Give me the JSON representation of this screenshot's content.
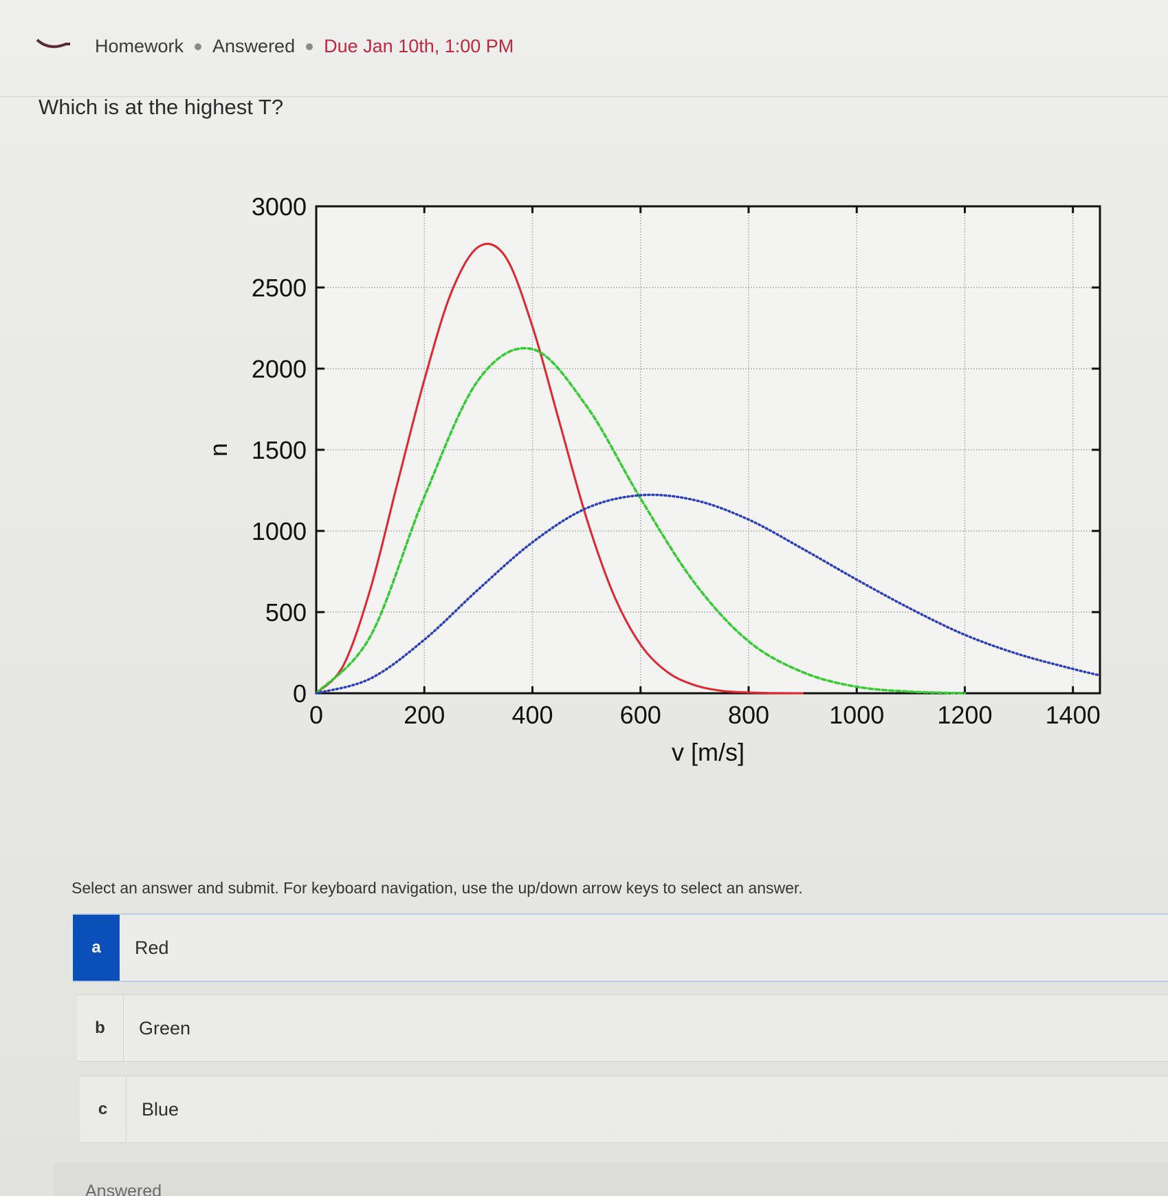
{
  "header": {
    "breadcrumb": [
      "Homework",
      "Answered"
    ],
    "due": "Due Jan 10th, 1:00 PM"
  },
  "question": {
    "text": "Which is at the highest T?"
  },
  "instructions": "Select an answer and submit. For keyboard navigation, use the up/down arrow keys to select an answer.",
  "options": [
    {
      "letter": "a",
      "label": "Red",
      "selected": true
    },
    {
      "letter": "b",
      "label": "Green",
      "selected": false
    },
    {
      "letter": "c",
      "label": "Blue",
      "selected": false
    }
  ],
  "footer": {
    "status": "Answered"
  },
  "colors": {
    "due": "#c0283d",
    "selected": "#0b4fb8",
    "red_series": "#e0262e",
    "green_series": "#33cc33",
    "blue_series": "#2b3fbf"
  },
  "chart_data": {
    "type": "line",
    "title": "",
    "xlabel": "v [m/s]",
    "ylabel": "n",
    "xlim": [
      0,
      1450
    ],
    "ylim": [
      0,
      3000
    ],
    "xticks": [
      0,
      200,
      400,
      600,
      800,
      1000,
      1200,
      1400
    ],
    "yticks": [
      0,
      500,
      1000,
      1500,
      2000,
      2500,
      3000
    ],
    "grid": true,
    "legend": "none",
    "series": [
      {
        "color": "#e0262e",
        "style": "solid",
        "x": [
          0,
          50,
          100,
          150,
          200,
          250,
          300,
          350,
          400,
          450,
          500,
          550,
          600,
          650,
          700,
          750,
          800,
          850,
          900
        ],
        "y": [
          0,
          170,
          640,
          1290,
          1930,
          2470,
          2750,
          2690,
          2260,
          1670,
          1080,
          610,
          300,
          130,
          50,
          15,
          5,
          1,
          0
        ]
      },
      {
        "color": "#33cc33",
        "style": "dashed",
        "x": [
          0,
          100,
          200,
          300,
          400,
          500,
          600,
          700,
          800,
          900,
          1000,
          1100,
          1200
        ],
        "y": [
          0,
          350,
          1210,
          1930,
          2120,
          1770,
          1200,
          680,
          320,
          130,
          40,
          10,
          0
        ]
      },
      {
        "color": "#2b3fbf",
        "style": "dotted",
        "x": [
          0,
          100,
          200,
          300,
          400,
          500,
          600,
          700,
          800,
          900,
          1000,
          1100,
          1200,
          1300,
          1400,
          1450
        ],
        "y": [
          0,
          90,
          330,
          640,
          930,
          1140,
          1220,
          1190,
          1070,
          890,
          700,
          520,
          360,
          240,
          150,
          110
        ]
      }
    ]
  }
}
